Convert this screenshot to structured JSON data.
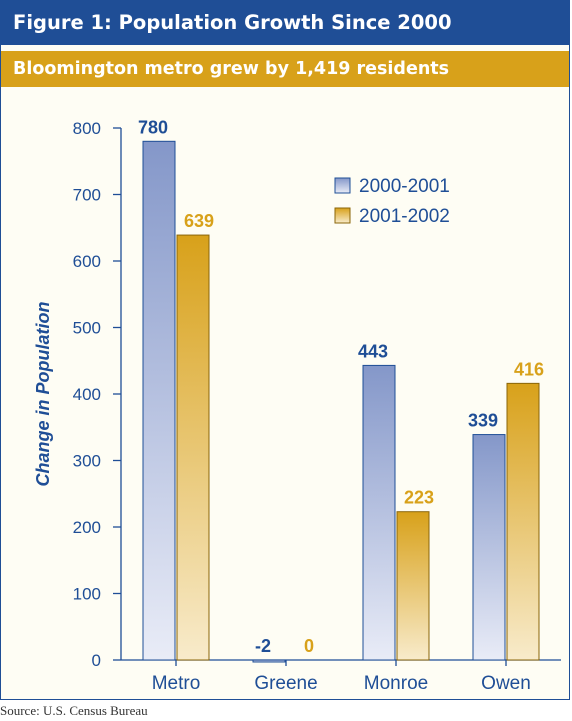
{
  "figure": {
    "title": "Figure 1: Population Growth Since 2000",
    "subtitle": "Bloomington metro grew by 1,419 residents",
    "source": "Source: U.S. Census Bureau"
  },
  "colors": {
    "frame": "#1f4e96",
    "accent": "#d8a11a",
    "series1_label": "#1f4e96",
    "series2_label": "#d8a11a"
  },
  "chart_data": {
    "type": "bar",
    "categories": [
      "Metro",
      "Greene",
      "Monroe",
      "Owen"
    ],
    "series": [
      {
        "name": "2000-2001",
        "values": [
          780,
          -2,
          443,
          339
        ],
        "data_labels": [
          "780",
          "-2",
          "443",
          "339"
        ]
      },
      {
        "name": "2001-2002",
        "values": [
          639,
          0,
          223,
          416
        ],
        "data_labels": [
          "639",
          "0",
          "223",
          "416"
        ]
      }
    ],
    "ylabel": "Change in Population",
    "xlabel": "",
    "ylim": [
      0,
      800
    ],
    "yticks": [
      0,
      100,
      200,
      300,
      400,
      500,
      600,
      700,
      800
    ],
    "ytick_labels": [
      "0",
      "100",
      "200",
      "300",
      "400",
      "500",
      "600",
      "700",
      "800"
    ],
    "grid": false,
    "legend_position": "top-right"
  }
}
